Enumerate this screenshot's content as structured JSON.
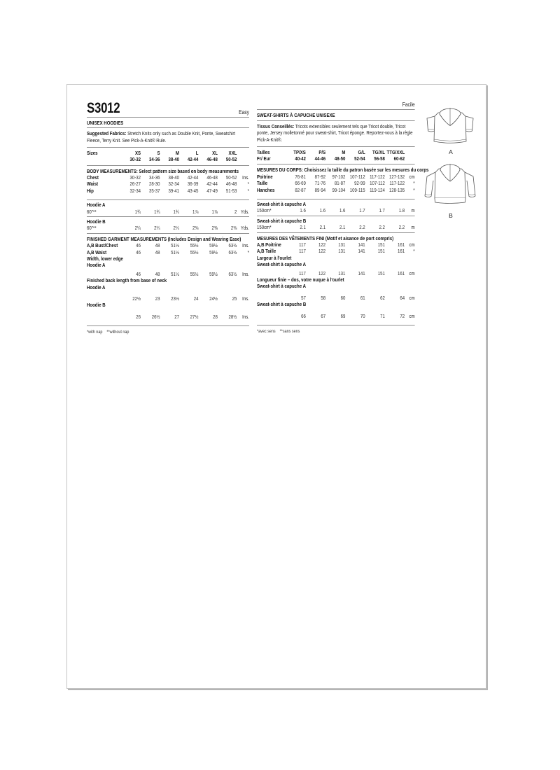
{
  "page": {
    "code": "S3012"
  },
  "english": {
    "difficulty": "Easy",
    "title": "UNISEX HOODIES",
    "fabrics_label": "Suggested Fabrics:",
    "fabrics_text": "Stretch Knits only such as Double Knit, Ponte, Sweatshirt Fleece, Terry Knit. See Pick-A-Knit® Rule.",
    "sizes": {
      "label": "Sizes",
      "label2": "",
      "names": [
        "XS",
        "S",
        "M",
        "L",
        "XL",
        "XXL"
      ],
      "ranges": [
        "30-32",
        "34-36",
        "38-40",
        "42-44",
        "46-48",
        "50-52"
      ]
    },
    "body": {
      "heading": "BODY MEASUREMENTS: Select pattern size based on body measurements",
      "rows": [
        {
          "label": "Chest",
          "values": [
            "30-32",
            "34-36",
            "38-40",
            "42-44",
            "46-48",
            "50-52"
          ],
          "unit": "Ins."
        },
        {
          "label": "Waist",
          "values": [
            "26-27",
            "28-30",
            "32-34",
            "36-39",
            "42-44",
            "46-48"
          ],
          "unit": "*"
        },
        {
          "label": "Hip",
          "values": [
            "32-34",
            "35-37",
            "39-41",
            "43-45",
            "47-49",
            "51-53"
          ],
          "unit": "*"
        }
      ]
    },
    "yardage": [
      {
        "garment": "Hoodie A",
        "width": "60\"**",
        "values": [
          "1¾",
          "1¾",
          "1¾",
          "1⅞",
          "1⅞",
          "2"
        ],
        "unit": "Yds."
      },
      {
        "garment": "Hoodie B",
        "width": "60\"**",
        "values": [
          "2¼",
          "2¼",
          "2¼",
          "2⅜",
          "2⅜",
          "2⅜"
        ],
        "unit": "Yds."
      }
    ],
    "finished": {
      "heading": "FINISHED GARMENT MEASUREMENTS (Includes Design and Wearing Ease)",
      "rows": [
        {
          "label": "A,B Bust/Chest",
          "values": [
            "46",
            "48",
            "51½",
            "55½",
            "59½",
            "63½"
          ],
          "unit": "Ins."
        },
        {
          "label": "A,B Waist",
          "values": [
            "46",
            "48",
            "51½",
            "55½",
            "59½",
            "63½"
          ],
          "unit": "*"
        }
      ],
      "width_heading": "Width, lower edge",
      "width_sub": "Hoodie A",
      "width_values": [
        "46",
        "48",
        "51½",
        "55½",
        "59½",
        "63½"
      ],
      "width_unit": "Ins.",
      "length_heading": "Finished back length from base of neck",
      "length_rows": [
        {
          "label": "Hoodie A",
          "values": [
            "22½",
            "23",
            "23½",
            "24",
            "24½",
            "25"
          ],
          "unit": "Ins."
        },
        {
          "label": "Hoodie B",
          "values": [
            "26",
            "26½",
            "27",
            "27½",
            "28",
            "28½"
          ],
          "unit": "Ins."
        }
      ]
    },
    "footnote": "*with nap    **without nap"
  },
  "french": {
    "difficulty": "Facile",
    "title": "SWEAT-SHIRTS À CAPUCHE UNISEXE",
    "fabrics_label": "Tissus Conseillés:",
    "fabrics_text": "Tricots extensibles seulement tels que Tricot double, Tricot ponte, Jersey molletonné pour sweat-shirt, Tricot éponge. Reportez-vous à la règle Pick-A-Knit®.",
    "sizes": {
      "label": "Tailles",
      "label2": "Fr/ Eur",
      "names": [
        "TP/XS",
        "P/S",
        "M",
        "G/L",
        "TG/XL",
        "TTG/XXL"
      ],
      "ranges": [
        "40-42",
        "44-46",
        "48-50",
        "52-54",
        "56-58",
        "60-62"
      ]
    },
    "body": {
      "heading": "MESURES DU CORPS: Choisissez la taille du patron basée sur les mesures du corps",
      "rows": [
        {
          "label": "Poitrine",
          "values": [
            "76-81",
            "87-92",
            "97-102",
            "107-112",
            "117-122",
            "127-132"
          ],
          "unit": "cm"
        },
        {
          "label": "Taille",
          "values": [
            "66-69",
            "71-76",
            "81-87",
            "92-99",
            "107-112",
            "117-122"
          ],
          "unit": "*"
        },
        {
          "label": "Hanches",
          "values": [
            "82-87",
            "89-94",
            "99-104",
            "109-115",
            "119-124",
            "128-135"
          ],
          "unit": "*"
        }
      ]
    },
    "yardage": [
      {
        "garment": "Sweat-shirt à capuche A",
        "width": "150cm*",
        "values": [
          "1.6",
          "1.6",
          "1.6",
          "1.7",
          "1.7",
          "1.8"
        ],
        "unit": "m"
      },
      {
        "garment": "Sweat-shirt à capuche B",
        "width": "150cm*",
        "values": [
          "2.1",
          "2.1",
          "2.1",
          "2.2",
          "2.2",
          "2.2"
        ],
        "unit": "m"
      }
    ],
    "finished": {
      "heading": "MESURES DES VÊTEMENTS FINI (Motif et aisance de port compris)",
      "rows": [
        {
          "label": "A,B Poitrine",
          "values": [
            "117",
            "122",
            "131",
            "141",
            "151",
            "161"
          ],
          "unit": "cm"
        },
        {
          "label": "A,B Taille",
          "values": [
            "117",
            "122",
            "131",
            "141",
            "151",
            "161"
          ],
          "unit": "*"
        }
      ],
      "width_heading": "Largeur à l'ourlet",
      "width_sub": "Sweat-shirt à capuche A",
      "width_values": [
        "117",
        "122",
        "131",
        "141",
        "151",
        "161"
      ],
      "width_unit": "cm",
      "length_heading": "Longueur finie – dos, votre nuque à l'ourlet",
      "length_rows": [
        {
          "label": "Sweat-shirt à capuche A",
          "values": [
            "57",
            "58",
            "60",
            "61",
            "62",
            "64"
          ],
          "unit": "cm"
        },
        {
          "label": "Sweat-shirt à capuche B",
          "values": [
            "66",
            "67",
            "69",
            "70",
            "71",
            "72"
          ],
          "unit": "cm"
        }
      ]
    },
    "footnote": "*avec sens    **sans sens"
  },
  "illustrations": {
    "label_a": "A",
    "label_b": "B"
  }
}
